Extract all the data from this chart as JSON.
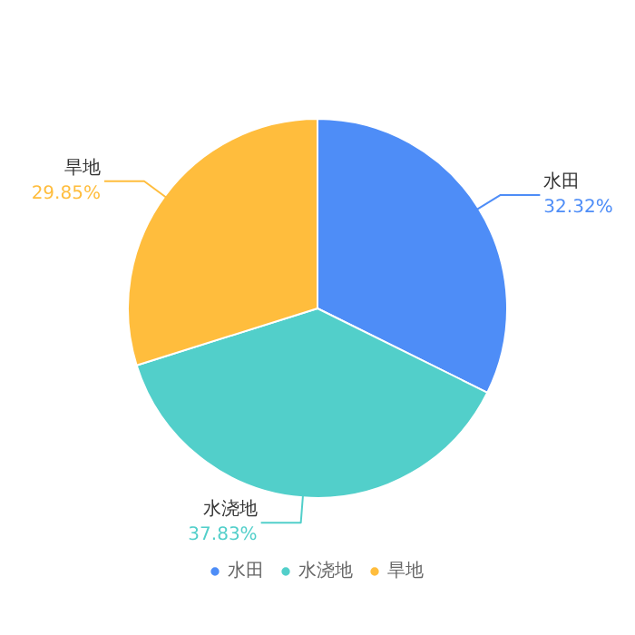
{
  "chart_data": {
    "type": "pie",
    "categories": [
      "水田",
      "水浇地",
      "旱地"
    ],
    "values": [
      32.32,
      37.83,
      29.85
    ],
    "value_labels": [
      "32.32%",
      "37.83%",
      "29.85%"
    ],
    "colors": [
      "#4e8df7",
      "#52cfca",
      "#ffbd3d"
    ],
    "legend": "bottom"
  }
}
